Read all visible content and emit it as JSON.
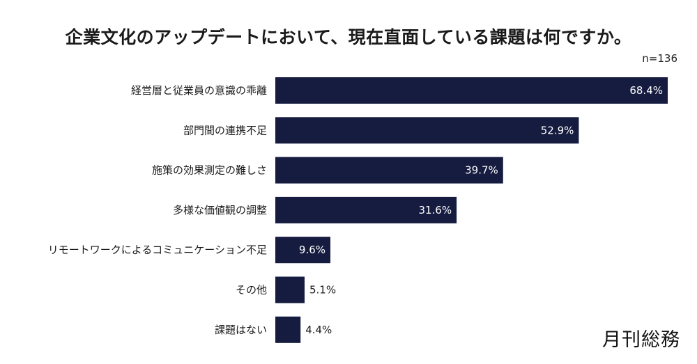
{
  "chart_data": {
    "type": "bar",
    "orientation": "horizontal",
    "title": "企業文化のアップデートにおいて、現在直面している課題は何ですか。",
    "sample_size": "n=136",
    "unit": "%",
    "bar_color": "#161c40",
    "categories": [
      "経営層と従業員の意識の乖離",
      "部門間の連携不足",
      "施策の効果測定の難しさ",
      "多様な価値観の調整",
      "リモートワークによるコミュニケーション不足",
      "その他",
      "課題はない"
    ],
    "values": [
      68.4,
      52.9,
      39.7,
      31.6,
      9.6,
      5.1,
      4.4
    ],
    "value_labels": [
      "68.4%",
      "52.9%",
      "39.7%",
      "31.6%",
      "9.6%",
      "5.1%",
      "4.4%"
    ],
    "xlim": [
      0,
      68.4
    ]
  },
  "brand": "月刊総務"
}
